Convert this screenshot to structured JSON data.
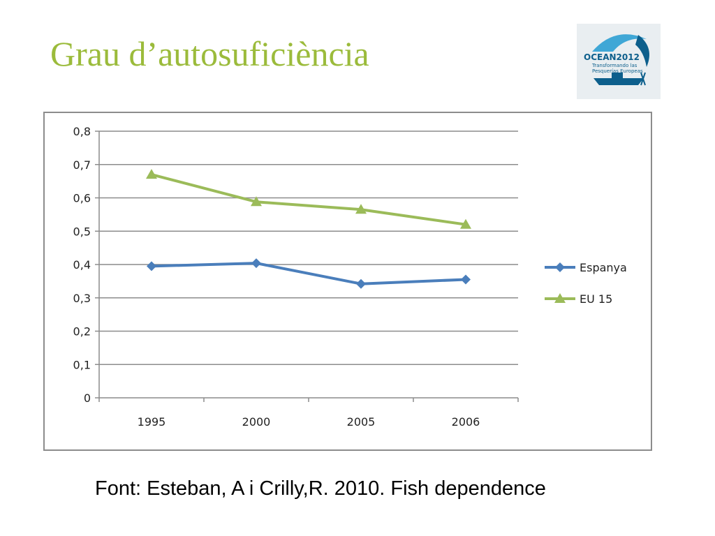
{
  "slide": {
    "title": "Grau d’autosuficiència",
    "source": "Font: Esteban, A i Crilly,R. 2010. Fish dependence"
  },
  "logo": {
    "brand": "OCEAN2012",
    "tagline_1": "Transformando las",
    "tagline_2": "Pesquerías Europeas",
    "colors": {
      "primary": "#0d5f8c",
      "light": "#3fa7d6",
      "background": "#e9eef1"
    }
  },
  "chart_data": {
    "type": "line",
    "categories": [
      "1995",
      "2000",
      "2005",
      "2006"
    ],
    "series": [
      {
        "name": "Espanya",
        "values": [
          0.395,
          0.404,
          0.342,
          0.355
        ],
        "color": "#4a7ebb",
        "marker": "diamond"
      },
      {
        "name": "EU 15",
        "values": [
          0.67,
          0.588,
          0.565,
          0.52
        ],
        "color": "#9bbb59",
        "marker": "triangle"
      }
    ],
    "ylim": [
      0,
      0.8
    ],
    "yticks": [
      "0",
      "0,1",
      "0,2",
      "0,3",
      "0,4",
      "0,5",
      "0,6",
      "0,7",
      "0,8"
    ],
    "grid": true,
    "legend": "right"
  }
}
